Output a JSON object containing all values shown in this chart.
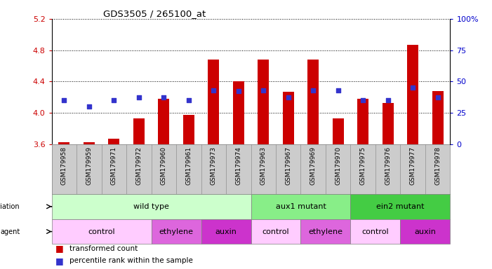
{
  "title": "GDS3505 / 265100_at",
  "samples": [
    "GSM179958",
    "GSM179959",
    "GSM179971",
    "GSM179972",
    "GSM179960",
    "GSM179961",
    "GSM179973",
    "GSM179974",
    "GSM179963",
    "GSM179967",
    "GSM179969",
    "GSM179970",
    "GSM179975",
    "GSM179976",
    "GSM179977",
    "GSM179978"
  ],
  "bar_values": [
    3.62,
    3.62,
    3.67,
    3.93,
    4.18,
    3.97,
    4.68,
    4.4,
    4.68,
    4.27,
    4.68,
    3.93,
    4.18,
    4.12,
    4.87,
    4.28
  ],
  "dot_percentiles": [
    35,
    30,
    35,
    37,
    37,
    35,
    43,
    42,
    43,
    37,
    43,
    43,
    35,
    35,
    45,
    37
  ],
  "ylim": [
    3.6,
    5.2
  ],
  "y2lim": [
    0,
    100
  ],
  "yticks": [
    3.6,
    4.0,
    4.4,
    4.8,
    5.2
  ],
  "y2ticks": [
    0,
    25,
    50,
    75,
    100
  ],
  "bar_color": "#cc0000",
  "dot_color": "#3333cc",
  "bar_bottom": 3.6,
  "groups": [
    {
      "label": "wild type",
      "start": 0,
      "end": 8,
      "color": "#ccffcc"
    },
    {
      "label": "aux1 mutant",
      "start": 8,
      "end": 12,
      "color": "#88ee88"
    },
    {
      "label": "ein2 mutant",
      "start": 12,
      "end": 16,
      "color": "#44cc44"
    }
  ],
  "agents": [
    {
      "label": "control",
      "start": 0,
      "end": 4,
      "color": "#ffccff"
    },
    {
      "label": "ethylene",
      "start": 4,
      "end": 6,
      "color": "#dd66dd"
    },
    {
      "label": "auxin",
      "start": 6,
      "end": 8,
      "color": "#cc33cc"
    },
    {
      "label": "control",
      "start": 8,
      "end": 10,
      "color": "#ffccff"
    },
    {
      "label": "ethylene",
      "start": 10,
      "end": 12,
      "color": "#dd66dd"
    },
    {
      "label": "control",
      "start": 12,
      "end": 14,
      "color": "#ffccff"
    },
    {
      "label": "auxin",
      "start": 14,
      "end": 16,
      "color": "#cc33cc"
    }
  ],
  "tick_color_left": "#cc0000",
  "tick_color_right": "#0000cc",
  "bg_color": "#ffffff",
  "xtick_bg": "#cccccc"
}
